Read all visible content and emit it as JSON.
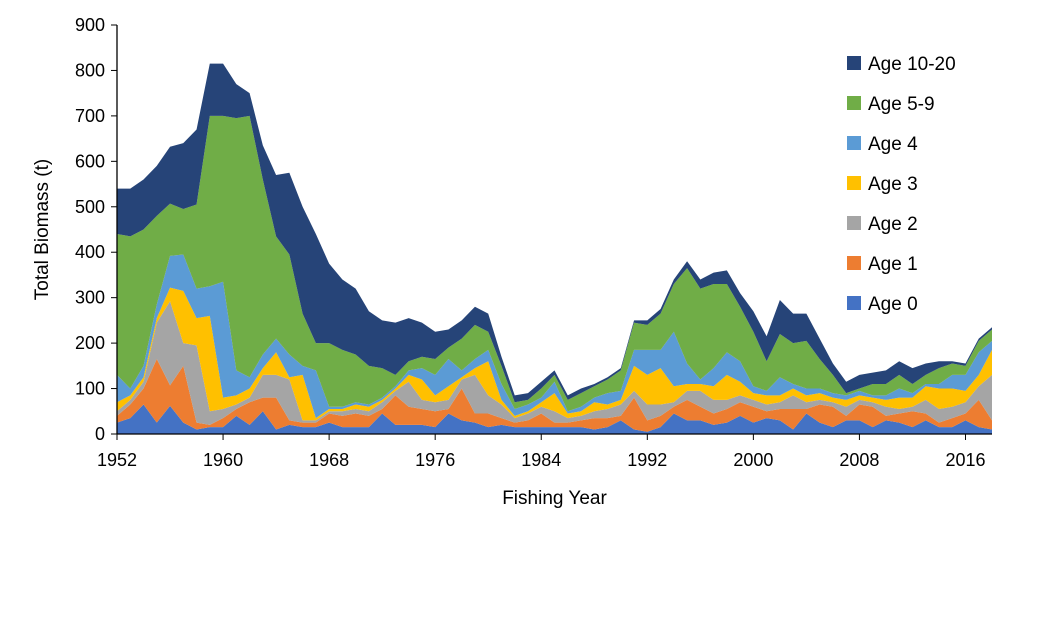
{
  "chart_data": {
    "type": "area",
    "stacked": true,
    "title": "",
    "xlabel": "Fishing Year",
    "ylabel": "Total Biomass (t)",
    "xlim": [
      1952,
      2018
    ],
    "ylim": [
      0,
      900
    ],
    "x_ticks": [
      1952,
      1960,
      1968,
      1976,
      1984,
      1992,
      2000,
      2008,
      2016
    ],
    "y_ticks": [
      0,
      100,
      200,
      300,
      400,
      500,
      600,
      700,
      800,
      900
    ],
    "grid": false,
    "legend_position": "top-right",
    "x": [
      1952,
      1953,
      1954,
      1955,
      1956,
      1957,
      1958,
      1959,
      1960,
      1961,
      1962,
      1963,
      1964,
      1965,
      1966,
      1967,
      1968,
      1969,
      1970,
      1971,
      1972,
      1973,
      1974,
      1975,
      1976,
      1977,
      1978,
      1979,
      1980,
      1981,
      1982,
      1983,
      1984,
      1985,
      1986,
      1987,
      1988,
      1989,
      1990,
      1991,
      1992,
      1993,
      1994,
      1995,
      1996,
      1997,
      1998,
      1999,
      2000,
      2001,
      2002,
      2003,
      2004,
      2005,
      2006,
      2007,
      2008,
      2009,
      2010,
      2011,
      2012,
      2013,
      2014,
      2015,
      2016,
      2017,
      2018
    ],
    "series": [
      {
        "name": "Age 0",
        "color": "#4472C4",
        "values": [
          25,
          35,
          65,
          25,
          62,
          25,
          10,
          15,
          15,
          40,
          20,
          50,
          10,
          20,
          15,
          15,
          25,
          15,
          15,
          15,
          45,
          20,
          20,
          20,
          15,
          45,
          30,
          25,
          15,
          20,
          15,
          15,
          15,
          15,
          15,
          15,
          10,
          15,
          30,
          10,
          5,
          15,
          45,
          30,
          30,
          20,
          25,
          40,
          25,
          35,
          30,
          10,
          45,
          25,
          15,
          30,
          30,
          15,
          30,
          25,
          15,
          30,
          15,
          15,
          30,
          15,
          10
        ]
      },
      {
        "name": "Age 1",
        "color": "#ED7D31",
        "values": [
          15,
          30,
          35,
          140,
          45,
          125,
          15,
          5,
          20,
          15,
          50,
          30,
          70,
          10,
          10,
          10,
          20,
          25,
          30,
          25,
          10,
          65,
          40,
          35,
          35,
          10,
          70,
          20,
          30,
          15,
          10,
          15,
          30,
          10,
          10,
          15,
          25,
          20,
          10,
          70,
          25,
          25,
          15,
          45,
          30,
          25,
          30,
          30,
          35,
          15,
          25,
          45,
          10,
          40,
          45,
          10,
          35,
          45,
          10,
          20,
          35,
          15,
          10,
          20,
          15,
          60,
          20
        ]
      },
      {
        "name": "Age 2",
        "color": "#A5A5A5",
        "values": [
          10,
          10,
          15,
          80,
          185,
          50,
          170,
          30,
          20,
          10,
          10,
          50,
          50,
          90,
          5,
          5,
          5,
          10,
          10,
          10,
          15,
          10,
          55,
          20,
          20,
          20,
          20,
          85,
          40,
          30,
          10,
          15,
          15,
          25,
          10,
          10,
          15,
          20,
          25,
          15,
          35,
          25,
          10,
          20,
          35,
          30,
          20,
          15,
          15,
          15,
          15,
          30,
          15,
          10,
          10,
          20,
          10,
          10,
          20,
          10,
          10,
          30,
          30,
          25,
          25,
          30,
          100
        ]
      },
      {
        "name": "Age 3",
        "color": "#FFC000",
        "values": [
          20,
          10,
          10,
          10,
          30,
          115,
          60,
          210,
          25,
          20,
          20,
          15,
          50,
          5,
          100,
          5,
          5,
          5,
          10,
          10,
          5,
          5,
          15,
          45,
          15,
          30,
          5,
          15,
          75,
          10,
          5,
          5,
          10,
          40,
          10,
          10,
          20,
          10,
          10,
          55,
          65,
          80,
          35,
          15,
          15,
          30,
          55,
          30,
          15,
          20,
          15,
          15,
          15,
          15,
          10,
          15,
          10,
          10,
          15,
          25,
          20,
          30,
          45,
          40,
          25,
          25,
          55
        ]
      },
      {
        "name": "Age 4",
        "color": "#5B9BD5",
        "values": [
          60,
          15,
          25,
          30,
          70,
          80,
          65,
          65,
          255,
          55,
          25,
          30,
          30,
          50,
          20,
          105,
          5,
          5,
          5,
          5,
          5,
          5,
          10,
          25,
          45,
          60,
          15,
          20,
          25,
          35,
          15,
          15,
          10,
          25,
          5,
          10,
          10,
          25,
          20,
          35,
          55,
          40,
          120,
          45,
          10,
          40,
          50,
          45,
          15,
          10,
          40,
          10,
          15,
          10,
          10,
          10,
          10,
          5,
          10,
          20,
          10,
          5,
          10,
          30,
          35,
          50,
          20
        ]
      },
      {
        "name": "Age 5-9",
        "color": "#70AD47",
        "values": [
          310,
          335,
          300,
          195,
          115,
          100,
          185,
          375,
          365,
          555,
          575,
          385,
          225,
          220,
          115,
          60,
          140,
          125,
          105,
          85,
          65,
          25,
          20,
          25,
          35,
          25,
          70,
          75,
          40,
          40,
          15,
          10,
          20,
          15,
          25,
          30,
          25,
          30,
          45,
          60,
          55,
          80,
          105,
          210,
          200,
          185,
          150,
          120,
          120,
          65,
          95,
          90,
          105,
          65,
          40,
          5,
          5,
          25,
          25,
          30,
          20,
          20,
          35,
          25,
          20,
          25,
          25
        ]
      },
      {
        "name": "Age 10-20",
        "color": "#264478",
        "values": [
          100,
          105,
          110,
          110,
          125,
          145,
          165,
          115,
          115,
          75,
          50,
          75,
          135,
          180,
          235,
          240,
          175,
          155,
          145,
          120,
          105,
          115,
          95,
          75,
          60,
          40,
          40,
          40,
          40,
          20,
          15,
          15,
          15,
          10,
          10,
          10,
          5,
          5,
          5,
          5,
          10,
          10,
          10,
          15,
          20,
          25,
          30,
          30,
          45,
          55,
          75,
          65,
          60,
          45,
          25,
          25,
          30,
          25,
          30,
          30,
          35,
          25,
          15,
          5,
          5,
          5,
          5
        ]
      }
    ]
  }
}
